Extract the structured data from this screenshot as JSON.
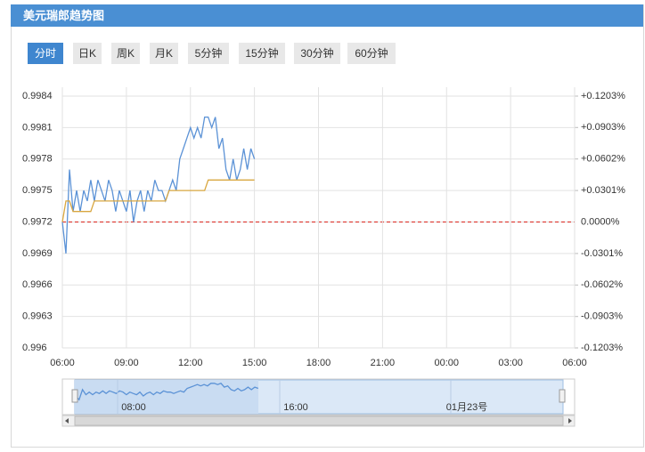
{
  "header": {
    "title": "美元瑞郎趋势图"
  },
  "tabs": [
    "分时",
    "日K",
    "周K",
    "月K",
    "5分钟",
    "15分钟",
    "30分钟",
    "60分钟"
  ],
  "active_tab": 0,
  "chart_data": {
    "type": "line",
    "x": [
      "06:00",
      "06:10",
      "06:20",
      "06:30",
      "06:40",
      "06:50",
      "07:00",
      "07:10",
      "07:20",
      "07:30",
      "07:40",
      "07:50",
      "08:00",
      "08:10",
      "08:20",
      "08:30",
      "08:40",
      "08:50",
      "09:00",
      "09:10",
      "09:20",
      "09:30",
      "09:40",
      "09:50",
      "10:00",
      "10:10",
      "10:20",
      "10:30",
      "10:40",
      "10:50",
      "11:00",
      "11:10",
      "11:20",
      "11:30",
      "11:40",
      "11:50",
      "12:00",
      "12:10",
      "12:20",
      "12:30",
      "12:40",
      "12:50",
      "13:00",
      "13:10",
      "13:20",
      "13:30",
      "13:40",
      "13:50",
      "14:00",
      "14:10",
      "14:20",
      "14:30",
      "14:40",
      "14:50",
      "15:00"
    ],
    "series": [
      {
        "color": "#5b92d6",
        "values": [
          0.9972,
          0.9969,
          0.9977,
          0.9973,
          0.9975,
          0.9973,
          0.9975,
          0.9974,
          0.9976,
          0.9974,
          0.9976,
          0.9975,
          0.9974,
          0.9976,
          0.9975,
          0.9973,
          0.9975,
          0.9974,
          0.9973,
          0.9975,
          0.9972,
          0.9974,
          0.9975,
          0.9973,
          0.9975,
          0.9974,
          0.9976,
          0.9975,
          0.9975,
          0.9974,
          0.9975,
          0.9976,
          0.9975,
          0.9978,
          0.9979,
          0.998,
          0.9981,
          0.998,
          0.9981,
          0.998,
          0.9982,
          0.9982,
          0.9981,
          0.9982,
          0.9979,
          0.998,
          0.9977,
          0.9976,
          0.9978,
          0.9976,
          0.9977,
          0.9979,
          0.9977,
          0.9979,
          0.9978
        ]
      },
      {
        "color": "#d9a740",
        "values": [
          0.9972,
          0.9974,
          0.9974,
          0.9973,
          0.9973,
          0.9973,
          0.9973,
          0.9973,
          0.9973,
          0.9974,
          0.9974,
          0.9974,
          0.9974,
          0.9974,
          0.9974,
          0.9974,
          0.9974,
          0.9974,
          0.9974,
          0.9974,
          0.9974,
          0.9974,
          0.9974,
          0.9974,
          0.9974,
          0.9974,
          0.9974,
          0.9974,
          0.9974,
          0.9974,
          0.9975,
          0.9975,
          0.9975,
          0.9975,
          0.9975,
          0.9975,
          0.9975,
          0.9975,
          0.9975,
          0.9975,
          0.9975,
          0.9976,
          0.9976,
          0.9976,
          0.9976,
          0.9976,
          0.9976,
          0.9976,
          0.9976,
          0.9976,
          0.9976,
          0.9976,
          0.9976,
          0.9976,
          0.9976
        ]
      }
    ],
    "xticks": [
      "06:00",
      "09:00",
      "12:00",
      "15:00",
      "18:00",
      "21:00",
      "00:00",
      "03:00",
      "06:00"
    ],
    "ylim": [
      0.996,
      0.9984
    ],
    "yticks": [
      0.9984,
      0.9981,
      0.9978,
      0.9975,
      0.9972,
      0.9969,
      0.9966,
      0.9963,
      0.996
    ],
    "y2lim": [
      -0.1203,
      0.1203
    ],
    "y2ticks": [
      {
        "value": 0.1203,
        "label": "+0.1203%"
      },
      {
        "value": 0.0903,
        "label": "+0.0903%"
      },
      {
        "value": 0.0602,
        "label": "+0.0602%"
      },
      {
        "value": 0.0301,
        "label": "+0.0301%"
      },
      {
        "value": 0,
        "label": "0.0000%"
      },
      {
        "value": -0.0301,
        "label": "-0.0301%"
      },
      {
        "value": -0.0602,
        "label": "-0.0602%"
      },
      {
        "value": -0.0903,
        "label": "-0.0903%"
      },
      {
        "value": -0.1203,
        "label": "-0.1203%"
      }
    ],
    "y2tick_colors": {
      "positive": "#d9251d",
      "zero": "#999999",
      "negative": "#1e7a1e"
    },
    "baseline_color": "#d9251d",
    "grid": true
  },
  "navigator": {
    "labels": [
      "08:00",
      "16:00",
      "01月23号"
    ]
  }
}
